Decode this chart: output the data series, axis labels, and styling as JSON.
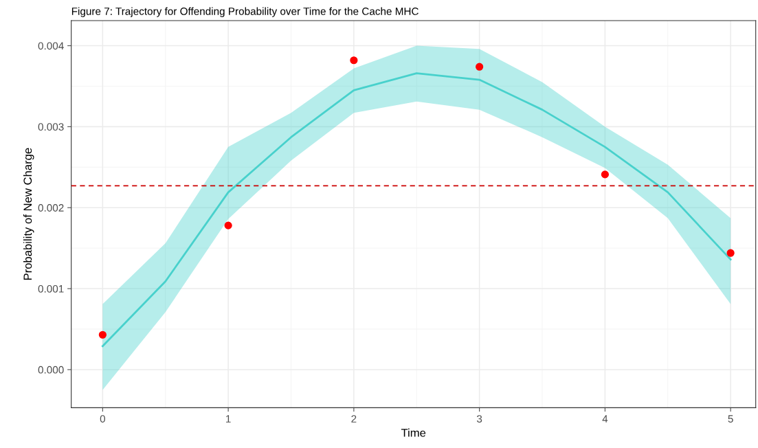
{
  "chart_data": {
    "type": "line",
    "title": "Figure 7: Trajectory for Offending Probability over Time for the Cache MHC",
    "xlabel": "Time",
    "ylabel": "Probability of New Charge",
    "series": [
      {
        "color": "#48d1cc",
        "x": [
          0,
          0.5,
          1,
          1.5,
          2,
          2.5,
          3,
          3.5,
          4,
          4.5,
          5
        ],
        "values": [
          0.00029,
          0.00109,
          0.00219,
          0.00287,
          0.00345,
          0.00366,
          0.00358,
          0.00321,
          0.00275,
          0.00219,
          0.00136
        ],
        "lower": [
          -0.00025,
          0.00071,
          0.00186,
          0.00258,
          0.00317,
          0.00331,
          0.00321,
          0.00287,
          0.00249,
          0.00187,
          0.00081
        ],
        "upper": [
          0.00081,
          0.00156,
          0.00275,
          0.00317,
          0.00372,
          0.004,
          0.00396,
          0.00355,
          0.003,
          0.00253,
          0.00187
        ]
      },
      {
        "type": "scatter",
        "color": "#ff0000",
        "marker": "circle",
        "x": [
          0,
          1,
          2,
          3,
          4,
          5
        ],
        "values": [
          0.00043,
          0.00178,
          0.00382,
          0.00374,
          0.00241,
          0.00144
        ]
      }
    ],
    "ref_lines": [
      {
        "axis": "y",
        "value": 0.00227,
        "color": "#cc0000",
        "line_style": "dashed"
      }
    ],
    "xlim": [
      -0.25,
      5.2
    ],
    "ylim": [
      -0.00047,
      0.00431
    ],
    "xticks": [
      0,
      1,
      2,
      3,
      4,
      5
    ],
    "yticks": [
      {
        "value": 0,
        "label": "0.000"
      },
      {
        "value": 0.001,
        "label": "0.001"
      },
      {
        "value": 0.002,
        "label": "0.002"
      },
      {
        "value": 0.003,
        "label": "0.003"
      },
      {
        "value": 0.004,
        "label": "0.004"
      }
    ],
    "grid": true
  }
}
